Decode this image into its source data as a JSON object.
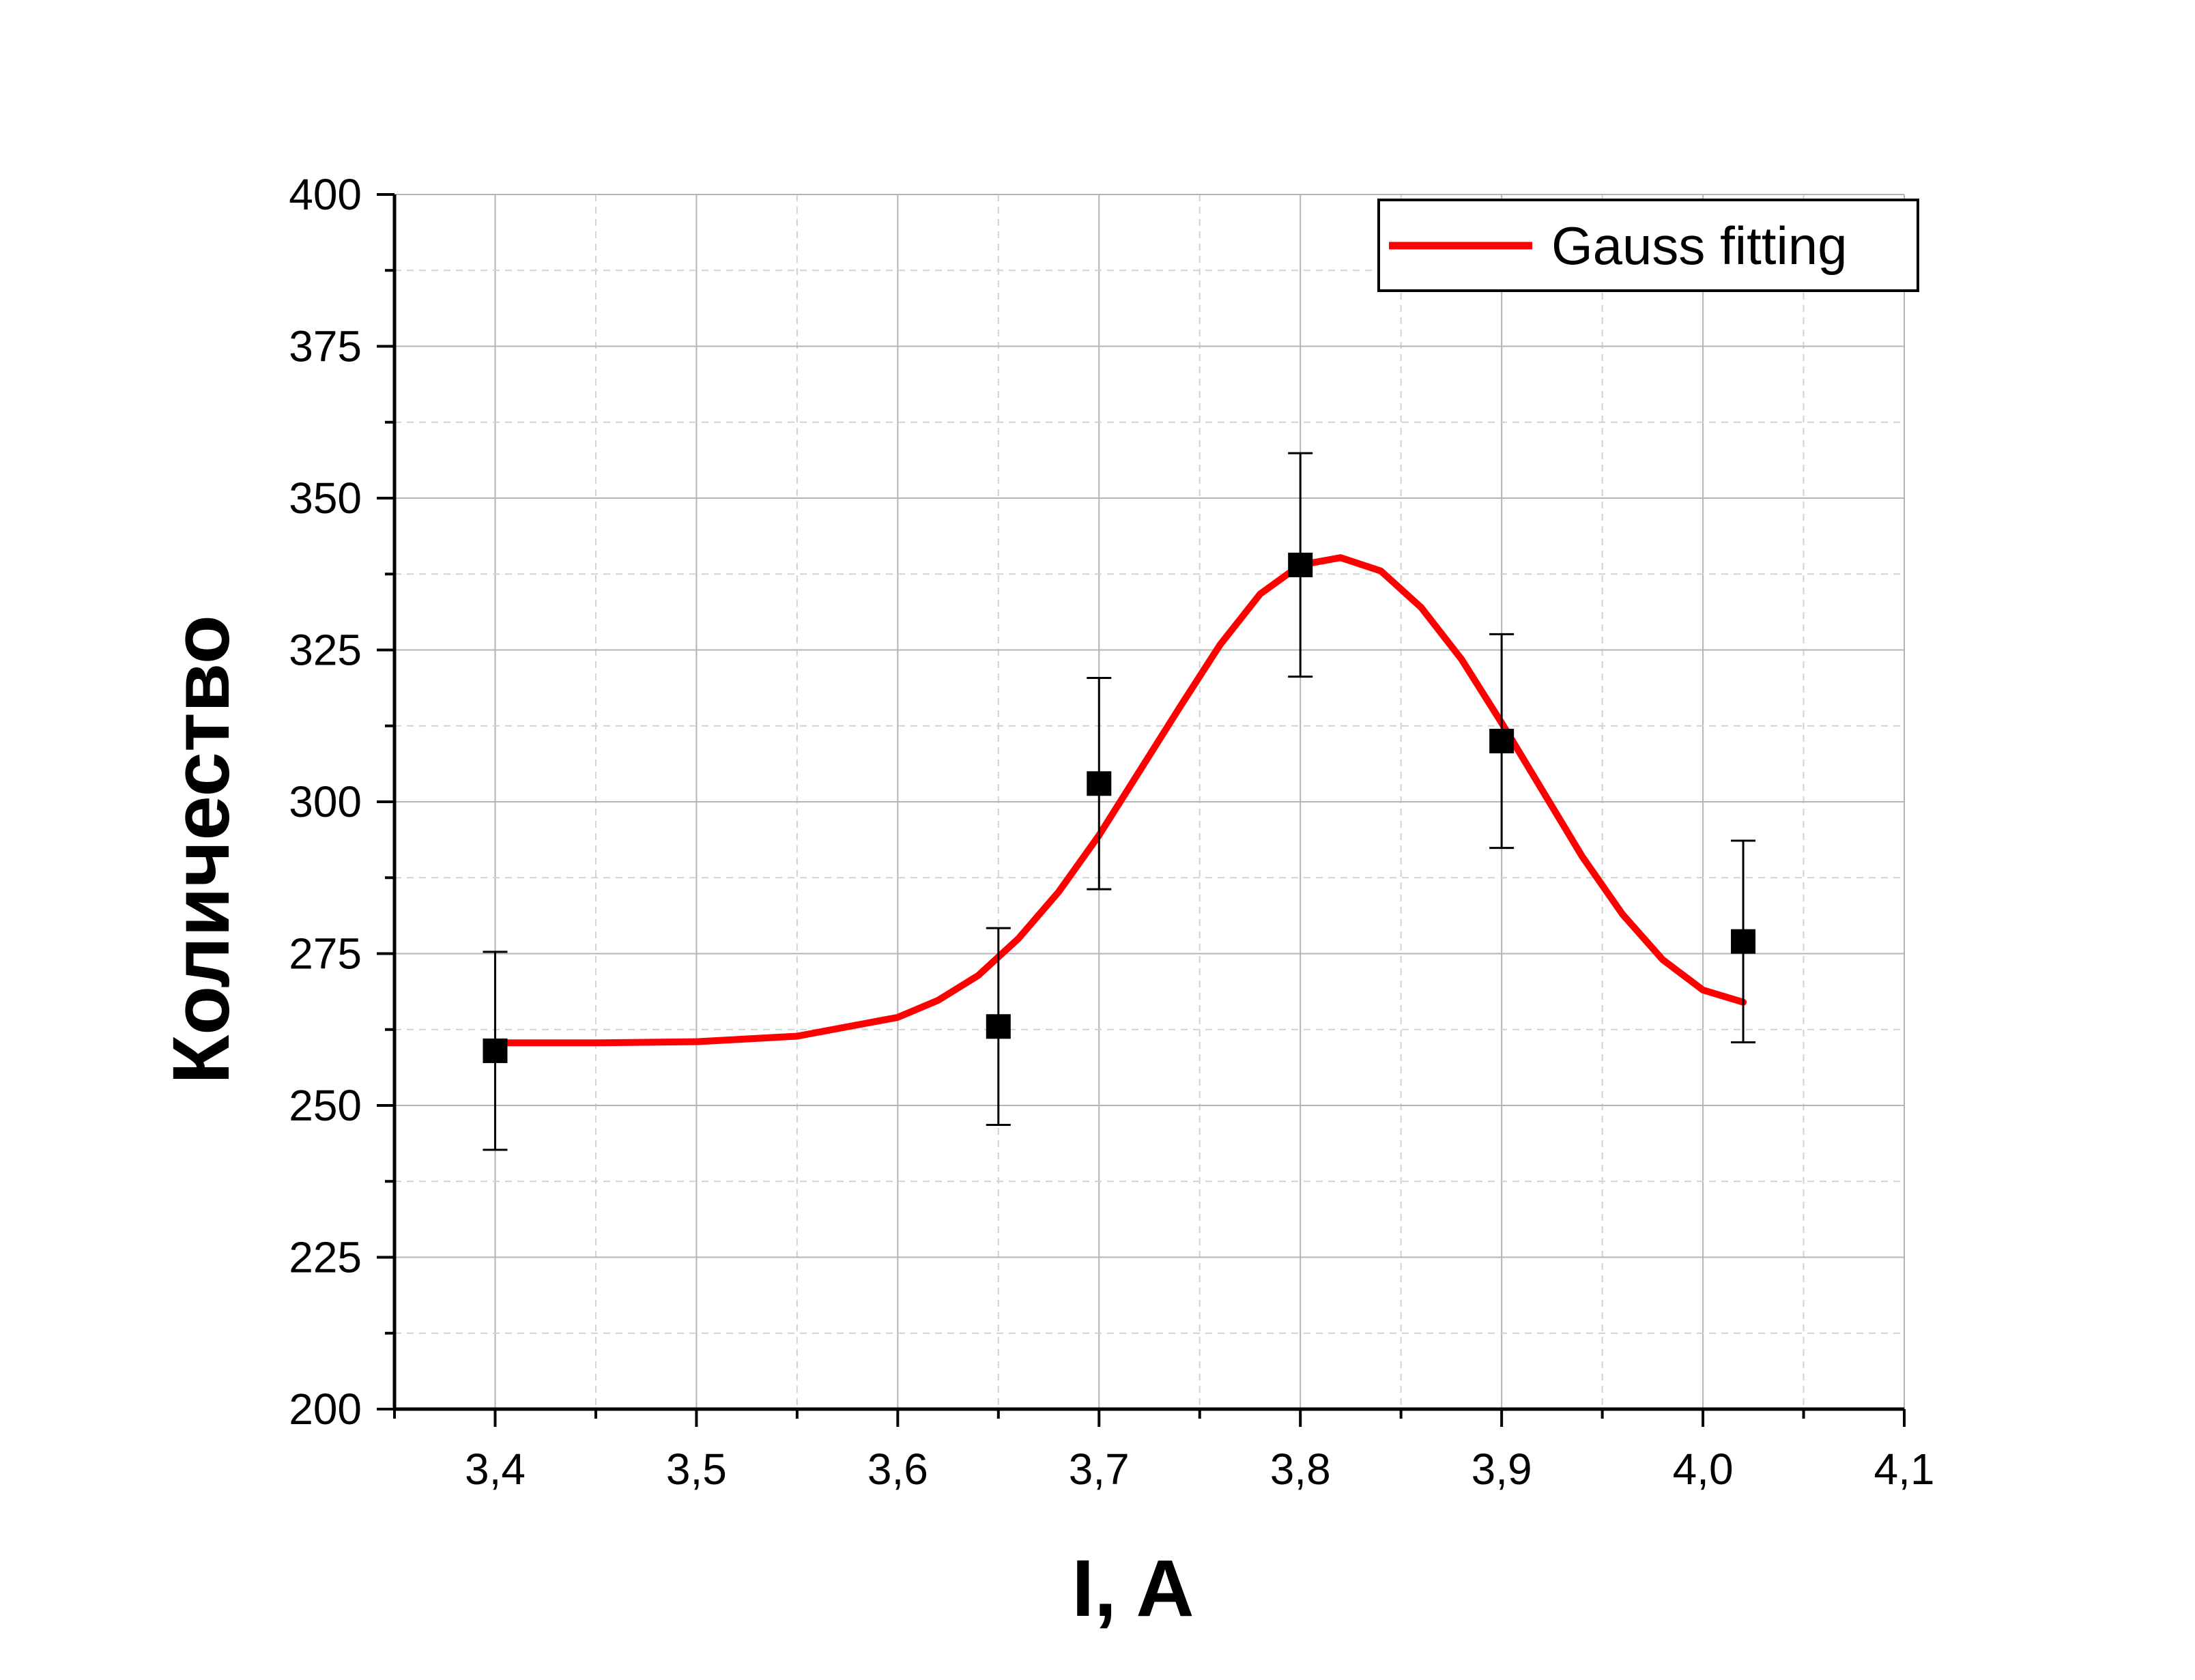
{
  "chart_data": {
    "type": "scatter",
    "xlabel": "I, A",
    "ylabel": "Количество",
    "xlim": [
      3.35,
      4.1
    ],
    "ylim": [
      200,
      400
    ],
    "x_ticks": [
      3.4,
      3.5,
      3.6,
      3.7,
      3.8,
      3.9,
      4.0,
      4.1
    ],
    "x_tick_labels": [
      "3,4",
      "3,5",
      "3,6",
      "3,7",
      "3,8",
      "3,9",
      "4,0",
      "4,1"
    ],
    "y_ticks": [
      200,
      225,
      250,
      275,
      300,
      325,
      350,
      375,
      400
    ],
    "y_tick_labels": [
      "200",
      "225",
      "250",
      "275",
      "300",
      "325",
      "350",
      "375",
      "400"
    ],
    "grid": true,
    "legend_position": "top-right",
    "colors": {
      "points": "#000000",
      "fit": "#ff0000"
    },
    "points": {
      "x": [
        3.4,
        3.65,
        3.7,
        3.8,
        3.9,
        4.02
      ],
      "y": [
        259,
        263,
        303,
        339,
        310,
        277
      ],
      "yerr": [
        16.3,
        16.2,
        17.4,
        18.4,
        17.6,
        16.6
      ]
    },
    "series": [
      {
        "name": "Gauss fitting",
        "type": "line",
        "x": [
          3.4,
          3.45,
          3.5,
          3.55,
          3.6,
          3.62,
          3.64,
          3.66,
          3.68,
          3.7,
          3.72,
          3.74,
          3.76,
          3.78,
          3.8,
          3.82,
          3.84,
          3.86,
          3.88,
          3.9,
          3.92,
          3.94,
          3.96,
          3.98,
          4.0,
          4.02
        ],
        "y": [
          260.3,
          260.3,
          260.5,
          261.4,
          264.5,
          267.3,
          271.4,
          277.5,
          285.2,
          294.5,
          305.0,
          315.5,
          325.8,
          334.2,
          339.0,
          340.2,
          338.0,
          332.0,
          323.5,
          313.0,
          302.0,
          291.0,
          281.5,
          274.0,
          269.0,
          267.0
        ]
      }
    ]
  }
}
